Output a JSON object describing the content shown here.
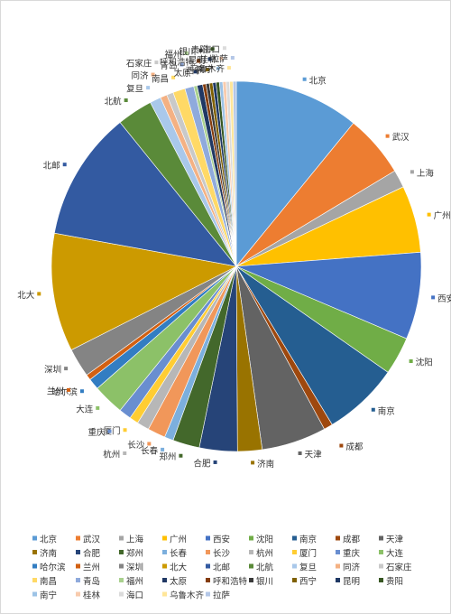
{
  "chart_data": {
    "type": "pie",
    "legend_position": "bottom",
    "slices": [
      {
        "name": "北京",
        "value": 112,
        "color": "#5B9BD5"
      },
      {
        "name": "武汉",
        "value": 56,
        "color": "#ED7D31"
      },
      {
        "name": "上海",
        "value": 16,
        "color": "#A5A5A5"
      },
      {
        "name": "广州",
        "value": 60,
        "color": "#FFC000"
      },
      {
        "name": "西安",
        "value": 78,
        "color": "#4472C4"
      },
      {
        "name": "沈阳",
        "value": 34,
        "color": "#70AD47"
      },
      {
        "name": "南京",
        "value": 68,
        "color": "#255E91"
      },
      {
        "name": "成都",
        "value": 8,
        "color": "#9E480E"
      },
      {
        "name": "天津",
        "value": 58,
        "color": "#636363"
      },
      {
        "name": "济南",
        "value": 22,
        "color": "#997300"
      },
      {
        "name": "合肥",
        "value": 34,
        "color": "#264478"
      },
      {
        "name": "郑州",
        "value": 24,
        "color": "#43682B"
      },
      {
        "name": "长春",
        "value": 8,
        "color": "#7CAFDD"
      },
      {
        "name": "长沙",
        "value": 16,
        "color": "#F1975A"
      },
      {
        "name": "杭州",
        "value": 11,
        "color": "#B7B7B7"
      },
      {
        "name": "厦门",
        "value": 8,
        "color": "#FFCD33"
      },
      {
        "name": "重庆",
        "value": 11,
        "color": "#698ED0"
      },
      {
        "name": "大连",
        "value": 28,
        "color": "#8CC168"
      },
      {
        "name": "哈尔滨",
        "value": 10,
        "color": "#327DC2"
      },
      {
        "name": "兰州",
        "value": 5,
        "color": "#D26012"
      },
      {
        "name": "深圳",
        "value": 26,
        "color": "#848484"
      },
      {
        "name": "北大",
        "value": 106,
        "color": "#CC9A00"
      },
      {
        "name": "北邮",
        "value": 116,
        "color": "#335AA1"
      },
      {
        "name": "北航",
        "value": 32,
        "color": "#5A8A39"
      },
      {
        "name": "复旦",
        "value": 10,
        "color": "#A9C8EA"
      },
      {
        "name": "同济",
        "value": 6,
        "color": "#F4B183"
      },
      {
        "name": "石家庄",
        "value": 6,
        "color": "#C9C9C9"
      },
      {
        "name": "南昌",
        "value": 11,
        "color": "#FFD966"
      },
      {
        "name": "青岛",
        "value": 8,
        "color": "#8FAADC"
      },
      {
        "name": "福州",
        "value": 3,
        "color": "#A9D18E"
      },
      {
        "name": "太原",
        "value": 5,
        "color": "#203864"
      },
      {
        "name": "呼和浩特",
        "value": 3,
        "color": "#843C0C"
      },
      {
        "name": "银川",
        "value": 3,
        "color": "#3A3A3A"
      },
      {
        "name": "西宁",
        "value": 3,
        "color": "#7F6000"
      },
      {
        "name": "昆明",
        "value": 3,
        "color": "#1F3864"
      },
      {
        "name": "贵阳",
        "value": 3,
        "color": "#385723"
      },
      {
        "name": "南宁",
        "value": 3,
        "color": "#9DC3E6"
      },
      {
        "name": "桂林",
        "value": 3,
        "color": "#F8CBAD"
      },
      {
        "name": "海口",
        "value": 3,
        "color": "#DBDBDB"
      },
      {
        "name": "乌鲁木齐",
        "value": 3,
        "color": "#FFE699"
      },
      {
        "name": "拉萨",
        "value": 3,
        "color": "#B4C7E7"
      }
    ]
  }
}
